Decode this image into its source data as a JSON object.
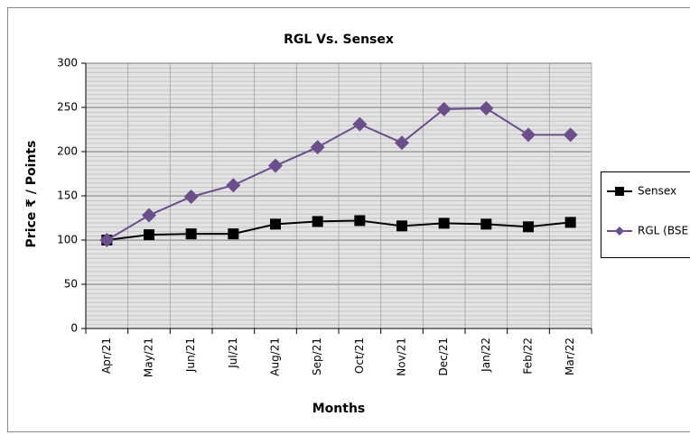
{
  "chart_data": {
    "type": "line",
    "title": "RGL Vs. Sensex",
    "x_label": "Months",
    "y_label": "Price ₹ / Points",
    "categories": [
      "Apr/21",
      "May/21",
      "Jun/21",
      "Jul/21",
      "Aug/21",
      "Sep/21",
      "Oct/21",
      "Nov/21",
      "Dec/21",
      "Jan/22",
      "Feb/22",
      "Mar/22"
    ],
    "series": [
      {
        "name": "Sensex",
        "color": "#000000",
        "values": [
          100,
          106,
          107,
          107,
          118,
          121,
          122,
          116,
          119,
          118,
          115,
          120
        ]
      },
      {
        "name": "RGL (BSE",
        "color": "#6b4f8c",
        "values": [
          100,
          128,
          149,
          162,
          184,
          205,
          231,
          210,
          248,
          249,
          219,
          219
        ]
      }
    ],
    "ylim": [
      0,
      300
    ],
    "yticks": [
      0,
      50,
      100,
      150,
      200,
      250,
      300
    ],
    "grid": true,
    "legend": "right"
  }
}
